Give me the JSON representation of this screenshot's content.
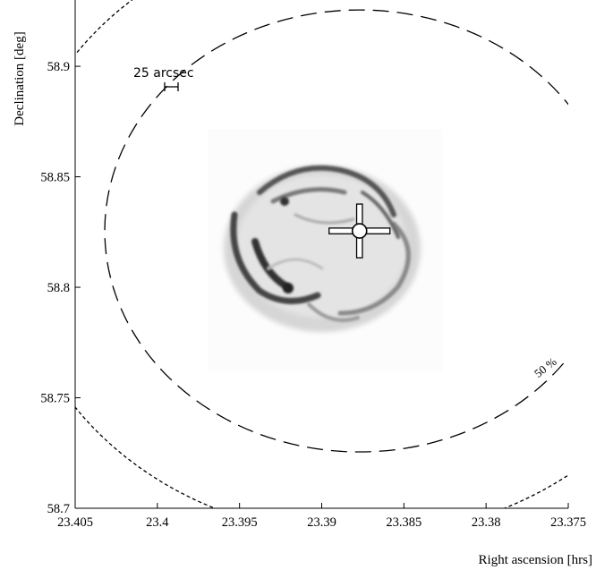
{
  "chart_data": {
    "type": "scatter",
    "title": "",
    "xlabel": "Right ascension [hrs]",
    "ylabel": "Declination [deg]",
    "xlim": [
      23.405,
      23.375
    ],
    "ylim": [
      58.7,
      58.93
    ],
    "x_reversed": true,
    "grid": false,
    "x_ticks": [
      23.405,
      23.4,
      23.395,
      23.39,
      23.385,
      23.38,
      23.375
    ],
    "x_tick_labels": [
      "23.405",
      "23.4",
      "23.395",
      "23.39",
      "23.385",
      "23.38",
      "23.375"
    ],
    "y_ticks": [
      58.7,
      58.75,
      58.8,
      58.85,
      58.9
    ],
    "y_tick_labels": [
      "58.7",
      "58.75",
      "58.8",
      "58.85",
      "58.9"
    ],
    "background_image": "supernova remnant X-ray image (grayscale, inverted)",
    "marker": {
      "x": 23.3877,
      "y": 58.8255,
      "symbol": "circled-cross"
    },
    "contours": [
      {
        "label": "50 %",
        "center_x": 23.3877,
        "center_y": 58.8255,
        "radius_ra": 0.0155,
        "radius_dec": 0.1,
        "style": "long-dash"
      },
      {
        "label": "68 %",
        "center_x": 23.3877,
        "center_y": 58.8255,
        "radius_ra": 0.0212,
        "radius_dec": 0.138,
        "style": "short-dash"
      }
    ],
    "scale_bar": {
      "label": "25 arcsec"
    }
  }
}
